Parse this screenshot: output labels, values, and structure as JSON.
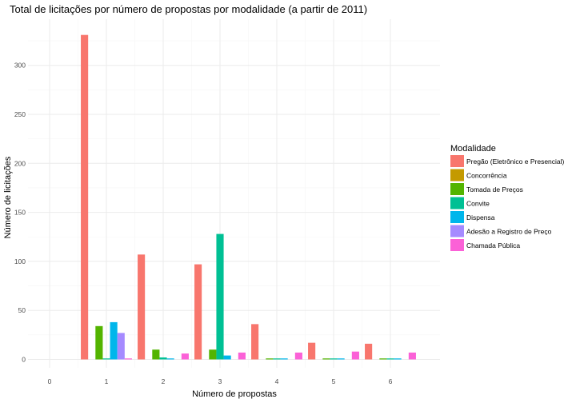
{
  "chart_data": {
    "type": "bar",
    "title": "Total de licitações por número de propostas por modalidade (a partir de 2011)",
    "xlabel": "Número de propostas",
    "ylabel": "Número de licitações",
    "categories": [
      "0",
      "1",
      "2",
      "3",
      "4",
      "5",
      "6"
    ],
    "xlim": [
      -0.5,
      6.5
    ],
    "ylim": [
      0,
      340
    ],
    "yticks": [
      0,
      50,
      100,
      150,
      200,
      250,
      300
    ],
    "grid": true,
    "legend": {
      "title": "Modalidade",
      "position": "right"
    },
    "series": [
      {
        "name": "Pregão (Eletrônico e Presencial)",
        "color": "#F8766D",
        "values": [
          null,
          331,
          107,
          97,
          36,
          17,
          16
        ]
      },
      {
        "name": "Concorrência",
        "color": "#C49A00",
        "values": [
          null,
          0,
          0,
          0,
          0,
          0,
          0
        ]
      },
      {
        "name": "Tomada de Preços",
        "color": "#53B400",
        "values": [
          null,
          34,
          10,
          10,
          1,
          1,
          1
        ]
      },
      {
        "name": "Convite",
        "color": "#00C094",
        "values": [
          null,
          1,
          2,
          128,
          1,
          1,
          1
        ]
      },
      {
        "name": "Dispensa",
        "color": "#00B6EB",
        "values": [
          null,
          38,
          1,
          4,
          1,
          1,
          1
        ]
      },
      {
        "name": "Adesão a Registro de Preço",
        "color": "#A58AFF",
        "values": [
          null,
          27,
          0,
          0,
          0,
          0,
          0
        ]
      },
      {
        "name": "Chamada Pública",
        "color": "#FB61D7",
        "values": [
          null,
          1,
          6,
          7,
          7,
          8,
          7
        ]
      }
    ]
  }
}
